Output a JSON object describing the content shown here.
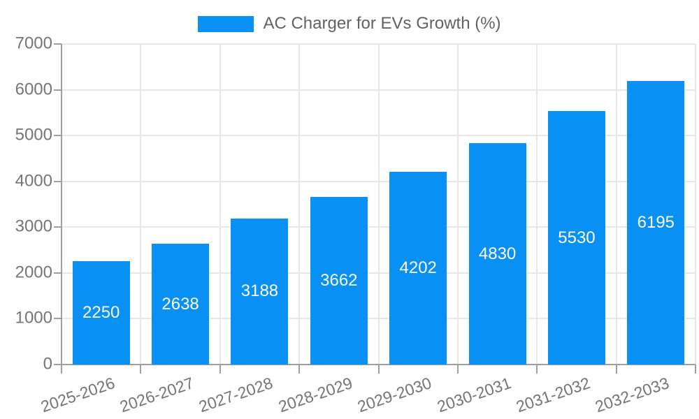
{
  "chart_data": {
    "type": "bar",
    "title": "",
    "legend": "AC Charger for EVs Growth (%)",
    "legend_position": "top",
    "categories": [
      "2025-2026",
      "2026-2027",
      "2027-2028",
      "2028-2029",
      "2029-2030",
      "2030-2031",
      "2031-2032",
      "2032-2033"
    ],
    "values": [
      2250,
      2638,
      3188,
      3662,
      4202,
      4830,
      5530,
      6195
    ],
    "value_labels": [
      "2250",
      "2638",
      "3188",
      "3662",
      "4202",
      "4830",
      "5530",
      "6195"
    ],
    "ylim": [
      0,
      7000
    ],
    "ytick_step": 1000,
    "ytick_labels": [
      "0",
      "1000",
      "2000",
      "3000",
      "4000",
      "5000",
      "6000",
      "7000"
    ],
    "grid": true,
    "gridlines": "horizontal-and-vertical",
    "x_label_rotation_deg": -19,
    "colors": {
      "bar": "#0990f5",
      "value_label": "#ffffff",
      "axis_line": "#9e9e9e",
      "gridline": "#e7e7e7",
      "tick_text": "#757575",
      "legend_text": "#5f6368",
      "background": "#ffffff"
    }
  }
}
